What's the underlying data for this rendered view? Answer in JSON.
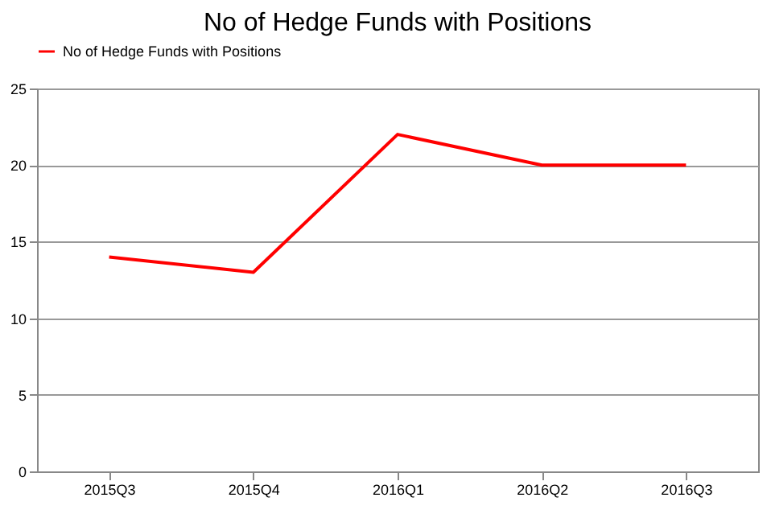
{
  "chart_data": {
    "type": "line",
    "title": "No of Hedge Funds with Positions",
    "categories": [
      "2015Q3",
      "2015Q4",
      "2016Q1",
      "2016Q2",
      "2016Q3"
    ],
    "series": [
      {
        "name": "No of Hedge Funds with Positions",
        "color": "#ff0000",
        "values": [
          14,
          13,
          22,
          20,
          20
        ]
      }
    ],
    "ylim": [
      0,
      25
    ],
    "yticks": [
      0,
      5,
      10,
      15,
      20,
      25
    ],
    "grid": "y",
    "legend": "top",
    "marker": "none",
    "line_style": "solid"
  }
}
